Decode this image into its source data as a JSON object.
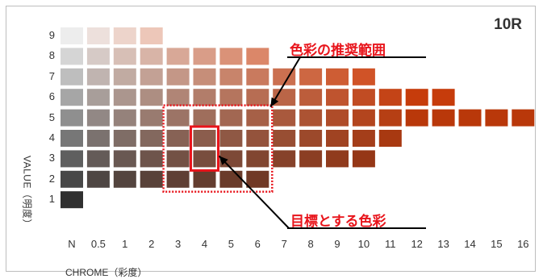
{
  "sheet": {
    "hue_label": "10R",
    "y_axis_label": "VALUE（明度）",
    "x_axis_label": "CHROME（彩度）",
    "row_labels": [
      "9",
      "8",
      "7",
      "6",
      "5",
      "4",
      "3",
      "2",
      "1"
    ],
    "column_labels": [
      "N",
      "0.5",
      "1",
      "2",
      "3",
      "4",
      "5",
      "6",
      "7",
      "8",
      "9",
      "10",
      "11",
      "12",
      "13",
      "14",
      "15",
      "16"
    ]
  },
  "callouts": {
    "recommended_range": "色彩の推奨範囲",
    "target_color": "目標とする色彩"
  },
  "colors": {
    "accent": "#e8141b",
    "hue_base": "#e0440c"
  },
  "chart_data": {
    "type": "heatmap",
    "title": "10R",
    "xlabel": "CHROME（彩度）",
    "ylabel": "VALUE（明度）",
    "x_categories": [
      "N",
      "0.5",
      "1",
      "2",
      "3",
      "4",
      "5",
      "6",
      "7",
      "8",
      "9",
      "10",
      "11",
      "12",
      "13",
      "14",
      "15",
      "16"
    ],
    "y_categories": [
      "9",
      "8",
      "7",
      "6",
      "5",
      "4",
      "3",
      "2",
      "1"
    ],
    "max_chroma_index_by_value": {
      "9": 3,
      "8": 7,
      "7": 11,
      "6": 14,
      "5": 17,
      "4": 12,
      "3": 11,
      "2": 7,
      "1": 0
    },
    "recommended_range": {
      "chroma_from": "3",
      "chroma_to": "6",
      "value_from": "2",
      "value_to": "5"
    },
    "target": {
      "chroma": "4",
      "value_from": "3",
      "value_to": "4"
    }
  }
}
